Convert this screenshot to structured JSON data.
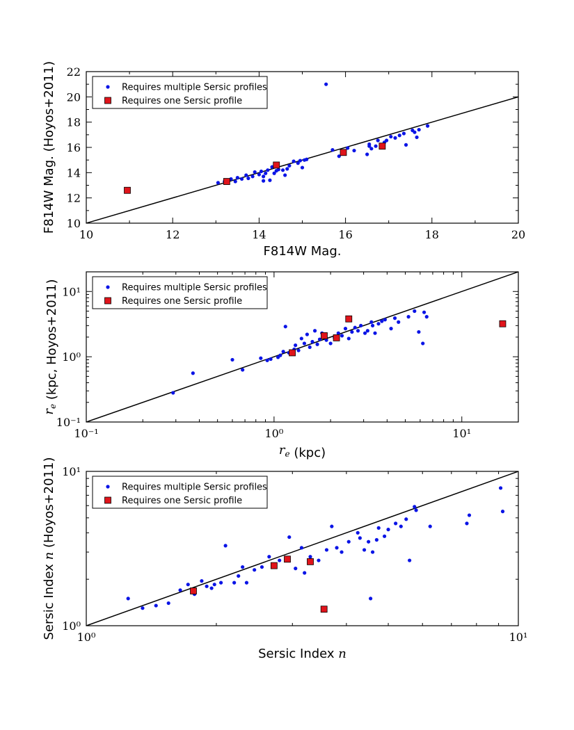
{
  "legend_labels": [
    "Requires multiple Sersic profiles",
    "Requires one Sersic profile"
  ],
  "colors": {
    "multiple": "#0a14e6",
    "one": "#e0141b"
  },
  "chart_data": [
    {
      "type": "scatter",
      "xlabel": "F814W Mag.",
      "ylabel": "F814W Mag. (Hoyos+2011)",
      "xscale": "linear",
      "yscale": "linear",
      "xlim": [
        10,
        20
      ],
      "ylim": [
        10,
        22
      ],
      "xticks": [
        10,
        12,
        14,
        16,
        18,
        20
      ],
      "yticks": [
        10,
        12,
        14,
        16,
        18,
        20,
        22
      ],
      "xtick_labels": [
        "10",
        "12",
        "14",
        "16",
        "18",
        "20"
      ],
      "ytick_labels": [
        "10",
        "12",
        "14",
        "16",
        "18",
        "20",
        "22"
      ],
      "reference_line": "y = x",
      "legend": "upper-left",
      "series": [
        {
          "name": "Requires multiple Sersic profiles",
          "marker": "circle",
          "points": [
            [
              13.05,
              13.2
            ],
            [
              13.2,
              13.3
            ],
            [
              13.35,
              13.5
            ],
            [
              13.45,
              13.3
            ],
            [
              13.5,
              13.6
            ],
            [
              13.6,
              13.5
            ],
            [
              13.7,
              13.8
            ],
            [
              13.75,
              13.55
            ],
            [
              13.85,
              13.7
            ],
            [
              13.9,
              14.05
            ],
            [
              14.0,
              13.85
            ],
            [
              14.05,
              14.1
            ],
            [
              14.1,
              13.35
            ],
            [
              14.1,
              13.7
            ],
            [
              14.15,
              13.95
            ],
            [
              14.2,
              14.2
            ],
            [
              14.25,
              13.4
            ],
            [
              14.3,
              14.45
            ],
            [
              14.35,
              13.95
            ],
            [
              14.4,
              14.15
            ],
            [
              14.45,
              14.25
            ],
            [
              14.55,
              14.2
            ],
            [
              14.6,
              13.8
            ],
            [
              14.65,
              14.3
            ],
            [
              14.7,
              14.55
            ],
            [
              14.8,
              14.9
            ],
            [
              14.9,
              14.75
            ],
            [
              14.95,
              14.95
            ],
            [
              15.0,
              14.4
            ],
            [
              15.05,
              15.0
            ],
            [
              15.1,
              15.05
            ],
            [
              15.55,
              21.0
            ],
            [
              15.7,
              15.8
            ],
            [
              15.85,
              15.3
            ],
            [
              16.05,
              15.95
            ],
            [
              16.2,
              15.75
            ],
            [
              16.5,
              15.45
            ],
            [
              16.55,
              16.25
            ],
            [
              16.55,
              16.1
            ],
            [
              16.6,
              15.9
            ],
            [
              16.7,
              16.1
            ],
            [
              16.75,
              16.55
            ],
            [
              16.85,
              16.2
            ],
            [
              16.9,
              16.4
            ],
            [
              16.95,
              16.55
            ],
            [
              17.05,
              16.85
            ],
            [
              17.15,
              16.75
            ],
            [
              17.25,
              16.95
            ],
            [
              17.35,
              17.1
            ],
            [
              17.4,
              16.2
            ],
            [
              17.55,
              17.35
            ],
            [
              17.6,
              17.2
            ],
            [
              17.65,
              16.8
            ],
            [
              17.7,
              17.4
            ],
            [
              17.9,
              17.7
            ]
          ]
        },
        {
          "name": "Requires one Sersic profile",
          "marker": "square",
          "points": [
            [
              10.95,
              12.6
            ],
            [
              13.25,
              13.3
            ],
            [
              14.4,
              14.6
            ],
            [
              15.95,
              15.6
            ],
            [
              16.85,
              16.1
            ]
          ]
        }
      ]
    },
    {
      "type": "scatter",
      "xlabel": "r_e (kpc)",
      "ylabel": "r_e (kpc, Hoyos+2011)",
      "xscale": "log",
      "yscale": "log",
      "xlim": [
        0.1,
        20
      ],
      "ylim": [
        0.1,
        20
      ],
      "xticks": [
        0.1,
        1,
        10
      ],
      "yticks": [
        0.1,
        1,
        10
      ],
      "xtick_labels": [
        "10⁻¹",
        "10⁰",
        "10¹"
      ],
      "ytick_labels": [
        "10⁻¹",
        "10⁰",
        "10¹"
      ],
      "reference_line": "y = x",
      "legend": "upper-left",
      "series": [
        {
          "name": "Requires multiple Sersic profiles",
          "marker": "circle",
          "points": [
            [
              0.29,
              0.28
            ],
            [
              0.37,
              0.56
            ],
            [
              0.6,
              0.9
            ],
            [
              0.68,
              0.63
            ],
            [
              0.85,
              0.95
            ],
            [
              0.92,
              0.88
            ],
            [
              0.96,
              0.92
            ],
            [
              1.05,
              0.98
            ],
            [
              1.08,
              1.05
            ],
            [
              1.12,
              1.2
            ],
            [
              1.15,
              2.9
            ],
            [
              1.2,
              1.15
            ],
            [
              1.28,
              1.3
            ],
            [
              1.3,
              1.5
            ],
            [
              1.35,
              1.25
            ],
            [
              1.4,
              1.9
            ],
            [
              1.45,
              1.6
            ],
            [
              1.5,
              2.2
            ],
            [
              1.55,
              1.4
            ],
            [
              1.6,
              1.7
            ],
            [
              1.65,
              2.5
            ],
            [
              1.7,
              1.55
            ],
            [
              1.75,
              1.85
            ],
            [
              1.8,
              2.3
            ],
            [
              1.9,
              1.8
            ],
            [
              2.0,
              1.6
            ],
            [
              2.1,
              1.95
            ],
            [
              2.2,
              2.3
            ],
            [
              2.3,
              2.1
            ],
            [
              2.4,
              2.7
            ],
            [
              2.5,
              1.9
            ],
            [
              2.6,
              2.4
            ],
            [
              2.7,
              2.8
            ],
            [
              2.8,
              2.5
            ],
            [
              2.9,
              3.0
            ],
            [
              3.05,
              2.3
            ],
            [
              3.15,
              2.5
            ],
            [
              3.3,
              3.4
            ],
            [
              3.35,
              3.0
            ],
            [
              3.45,
              2.3
            ],
            [
              3.6,
              3.2
            ],
            [
              3.75,
              3.5
            ],
            [
              3.9,
              3.7
            ],
            [
              4.2,
              2.7
            ],
            [
              4.4,
              3.9
            ],
            [
              4.6,
              3.4
            ],
            [
              5.2,
              4.1
            ],
            [
              5.6,
              5.0
            ],
            [
              5.9,
              2.4
            ],
            [
              6.2,
              1.6
            ],
            [
              6.5,
              4.1
            ],
            [
              6.3,
              4.8
            ]
          ]
        },
        {
          "name": "Requires one Sersic profile",
          "marker": "square",
          "points": [
            [
              1.25,
              1.15
            ],
            [
              1.85,
              2.1
            ],
            [
              2.15,
              1.95
            ],
            [
              2.5,
              3.8
            ],
            [
              16.5,
              3.2
            ]
          ]
        }
      ]
    },
    {
      "type": "scatter",
      "xlabel": "Sersic Index n",
      "ylabel": "Sersic Index n (Hoyos+2011)",
      "xscale": "log",
      "yscale": "log",
      "xlim": [
        1,
        10
      ],
      "ylim": [
        1,
        10
      ],
      "xticks": [
        1,
        10
      ],
      "yticks": [
        1,
        10
      ],
      "xtick_labels": [
        "10⁰",
        "10¹"
      ],
      "ytick_labels": [
        "10⁰",
        "10¹"
      ],
      "reference_line": "y = x",
      "legend": "upper-left",
      "series": [
        {
          "name": "Requires multiple Sersic profiles",
          "marker": "circle",
          "points": [
            [
              1.25,
              1.5
            ],
            [
              1.35,
              1.3
            ],
            [
              1.45,
              1.35
            ],
            [
              1.55,
              1.4
            ],
            [
              1.65,
              1.7
            ],
            [
              1.72,
              1.85
            ],
            [
              1.78,
              1.6
            ],
            [
              1.85,
              1.95
            ],
            [
              1.9,
              1.8
            ],
            [
              1.95,
              1.75
            ],
            [
              1.98,
              1.85
            ],
            [
              2.05,
              1.9
            ],
            [
              2.1,
              3.3
            ],
            [
              2.2,
              1.9
            ],
            [
              2.25,
              2.1
            ],
            [
              2.3,
              2.4
            ],
            [
              2.35,
              1.9
            ],
            [
              2.45,
              2.3
            ],
            [
              2.55,
              2.4
            ],
            [
              2.65,
              2.8
            ],
            [
              2.72,
              2.5
            ],
            [
              2.8,
              2.65
            ],
            [
              2.95,
              3.75
            ],
            [
              3.05,
              2.35
            ],
            [
              3.15,
              3.2
            ],
            [
              3.2,
              2.2
            ],
            [
              3.3,
              2.8
            ],
            [
              3.45,
              2.65
            ],
            [
              3.6,
              3.1
            ],
            [
              3.7,
              4.4
            ],
            [
              3.8,
              3.2
            ],
            [
              3.9,
              3.0
            ],
            [
              4.05,
              3.5
            ],
            [
              4.25,
              4.0
            ],
            [
              4.3,
              3.7
            ],
            [
              4.4,
              3.1
            ],
            [
              4.5,
              3.5
            ],
            [
              4.55,
              1.5
            ],
            [
              4.6,
              3.0
            ],
            [
              4.7,
              3.6
            ],
            [
              4.75,
              4.3
            ],
            [
              4.9,
              3.8
            ],
            [
              5.0,
              4.2
            ],
            [
              5.2,
              4.6
            ],
            [
              5.35,
              4.4
            ],
            [
              5.5,
              4.9
            ],
            [
              5.6,
              2.65
            ],
            [
              5.75,
              5.9
            ],
            [
              5.8,
              5.6
            ],
            [
              6.25,
              4.4
            ],
            [
              7.6,
              4.6
            ],
            [
              7.7,
              5.2
            ],
            [
              9.1,
              7.8
            ],
            [
              9.2,
              5.5
            ]
          ]
        },
        {
          "name": "Requires one Sersic profile",
          "marker": "square",
          "points": [
            [
              1.77,
              1.68
            ],
            [
              2.72,
              2.45
            ],
            [
              2.92,
              2.7
            ],
            [
              3.3,
              2.6
            ],
            [
              3.55,
              1.28
            ]
          ]
        }
      ]
    }
  ]
}
